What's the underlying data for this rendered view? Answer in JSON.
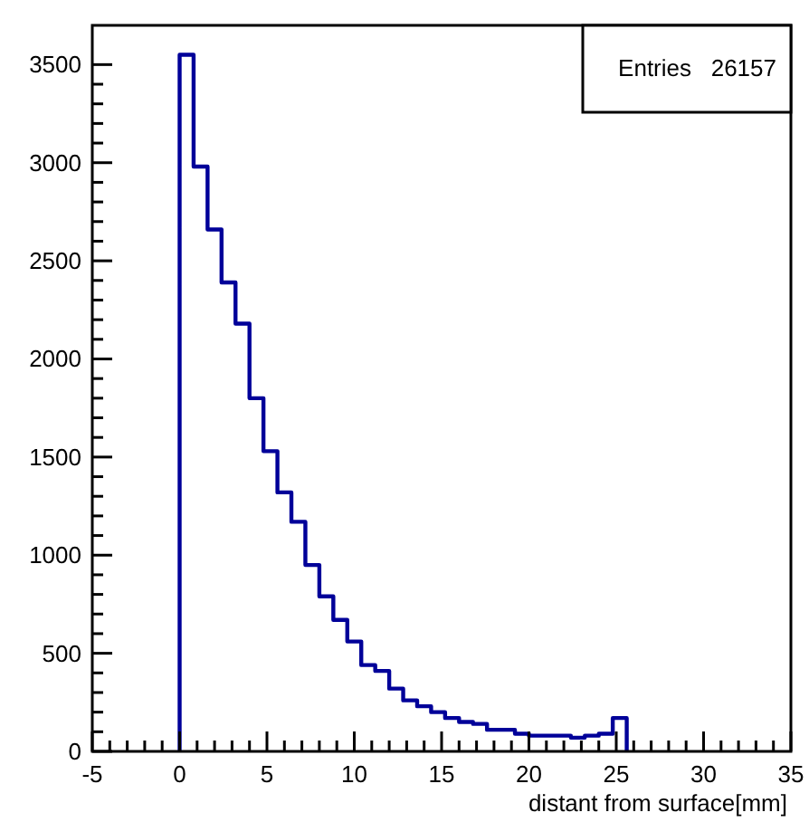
{
  "chart_data": {
    "type": "histogram",
    "xlabel": "distant from surface[mm]",
    "bins": [
      0,
      0.8,
      1.6,
      2.4,
      3.2,
      4,
      4.8,
      5.6,
      6.4,
      7.2,
      8,
      8.8,
      9.6,
      10.4,
      11.2,
      12,
      12.8,
      13.6,
      14.4,
      15.2,
      16,
      16.8,
      17.6,
      18.4,
      19.2,
      20,
      20.8,
      21.6,
      22.4,
      23.2,
      24,
      24.8,
      25.6
    ],
    "values": [
      3550,
      2980,
      2660,
      2390,
      2180,
      1800,
      1530,
      1320,
      1170,
      950,
      790,
      670,
      560,
      440,
      410,
      320,
      260,
      230,
      200,
      170,
      150,
      140,
      110,
      110,
      90,
      80,
      80,
      80,
      70,
      80,
      90,
      170
    ],
    "color": "#000099",
    "xlim": [
      -5,
      35
    ],
    "xticks": [
      -5,
      0,
      5,
      10,
      15,
      20,
      25,
      30,
      35
    ],
    "ylim": [
      0,
      3700
    ],
    "yticks": [
      0,
      500,
      1000,
      1500,
      2000,
      2500,
      3000,
      3500
    ],
    "annotations": [
      "Entries   26157"
    ],
    "grid": false
  }
}
